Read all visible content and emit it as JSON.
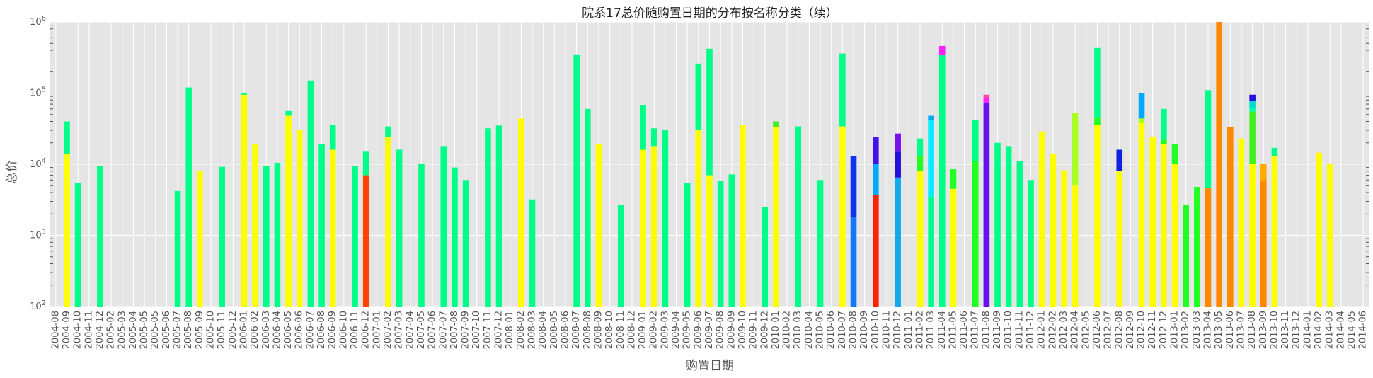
{
  "chart_data": {
    "type": "bar",
    "stacked": true,
    "title": "院系17总价随购置日期的分布按名称分类（续）",
    "xlabel": "购置日期",
    "ylabel": "总价",
    "yscale": "log",
    "ylim": [
      100,
      1000000
    ],
    "y_ticks": [
      {
        "value": 100,
        "base": "10",
        "exp": "2"
      },
      {
        "value": 1000,
        "base": "10",
        "exp": "3"
      },
      {
        "value": 10000,
        "base": "10",
        "exp": "4"
      },
      {
        "value": 100000,
        "base": "10",
        "exp": "5"
      },
      {
        "value": 1000000,
        "base": "10",
        "exp": "6"
      }
    ],
    "grid": true,
    "background": "#e5e5e5",
    "categories": [
      "2004-08",
      "2004-09",
      "2004-10",
      "2004-11",
      "2004-12",
      "2005-02",
      "2005-03",
      "2005-04",
      "2005-05",
      "2005-05",
      "2005-06",
      "2005-07",
      "2005-08",
      "2005-09",
      "2005-10",
      "2005-11",
      "2005-12",
      "2006-01",
      "2006-02",
      "2006-03",
      "2006-04",
      "2006-05",
      "2006-06",
      "2006-07",
      "2006-08",
      "2006-09",
      "2006-10",
      "2006-11",
      "2006-12",
      "2007-01",
      "2007-02",
      "2007-03",
      "2007-04",
      "2007-05",
      "2007-06",
      "2007-07",
      "2007-08",
      "2007-09",
      "2007-10",
      "2007-11",
      "2007-12",
      "2008-01",
      "2008-02",
      "2008-03",
      "2008-04",
      "2008-05",
      "2008-06",
      "2008-07",
      "2008-08",
      "2008-09",
      "2008-10",
      "2008-11",
      "2008-12",
      "2009-01",
      "2009-02",
      "2009-03",
      "2009-04",
      "2009-05",
      "2009-06",
      "2009-07",
      "2009-08",
      "2009-09",
      "2009-10",
      "2009-11",
      "2009-12",
      "2010-01",
      "2010-02",
      "2010-03",
      "2010-04",
      "2010-05",
      "2010-06",
      "2010-07",
      "2010-08",
      "2010-09",
      "2010-10",
      "2010-11",
      "2010-12",
      "2011-01",
      "2011-02",
      "2011-03",
      "2011-04",
      "2011-05",
      "2011-06",
      "2011-07",
      "2011-08",
      "2011-09",
      "2011-10",
      "2011-11",
      "2011-12",
      "2012-01",
      "2012-02",
      "2012-03",
      "2012-04",
      "2012-05",
      "2012-06",
      "2012-07",
      "2012-08",
      "2012-09",
      "2012-10",
      "2012-11",
      "2012-12",
      "2013-01",
      "2013-02",
      "2013-03",
      "2013-04",
      "2013-05",
      "2013-06",
      "2013-07",
      "2013-08",
      "2013-09",
      "2013-10",
      "2013-11",
      "2013-12",
      "2014-01",
      "2014-02",
      "2014-03",
      "2014-04",
      "2014-05",
      "2014-06"
    ],
    "bars": [
      {
        "i": 1,
        "segs": [
          [
            "#ffff00",
            14000
          ],
          [
            "#00ff88",
            40000
          ]
        ]
      },
      {
        "i": 2,
        "segs": [
          [
            "#00ff88",
            5500
          ]
        ]
      },
      {
        "i": 4,
        "segs": [
          [
            "#00ff88",
            9500
          ]
        ]
      },
      {
        "i": 11,
        "segs": [
          [
            "#00ff88",
            4200
          ]
        ]
      },
      {
        "i": 12,
        "segs": [
          [
            "#00ff88",
            120000
          ]
        ]
      },
      {
        "i": 13,
        "segs": [
          [
            "#ffff00",
            8000
          ]
        ]
      },
      {
        "i": 15,
        "segs": [
          [
            "#00ff88",
            9200
          ]
        ]
      },
      {
        "i": 17,
        "segs": [
          [
            "#ffff00",
            95000
          ],
          [
            "#00ff88",
            100000
          ]
        ]
      },
      {
        "i": 18,
        "segs": [
          [
            "#ffff00",
            19000
          ]
        ]
      },
      {
        "i": 19,
        "segs": [
          [
            "#00ff88",
            9500
          ]
        ]
      },
      {
        "i": 20,
        "segs": [
          [
            "#00ff88",
            10500
          ]
        ]
      },
      {
        "i": 21,
        "segs": [
          [
            "#ffff00",
            48000
          ],
          [
            "#00ff88",
            56000
          ]
        ]
      },
      {
        "i": 22,
        "segs": [
          [
            "#ffff00",
            30000
          ]
        ]
      },
      {
        "i": 23,
        "segs": [
          [
            "#00ff88",
            150000
          ]
        ]
      },
      {
        "i": 24,
        "segs": [
          [
            "#00ff88",
            19000
          ]
        ]
      },
      {
        "i": 25,
        "segs": [
          [
            "#ffff00",
            16000
          ],
          [
            "#00ff88",
            36000
          ]
        ]
      },
      {
        "i": 27,
        "segs": [
          [
            "#00ff88",
            9500
          ]
        ]
      },
      {
        "i": 28,
        "segs": [
          [
            "#ff4400",
            7000
          ],
          [
            "#00ff88",
            15000
          ]
        ]
      },
      {
        "i": 30,
        "segs": [
          [
            "#ffff00",
            24000
          ],
          [
            "#00ff88",
            34000
          ]
        ]
      },
      {
        "i": 31,
        "segs": [
          [
            "#00ff88",
            16000
          ]
        ]
      },
      {
        "i": 33,
        "segs": [
          [
            "#00ff88",
            10000
          ]
        ]
      },
      {
        "i": 35,
        "segs": [
          [
            "#00ff88",
            18000
          ]
        ]
      },
      {
        "i": 36,
        "segs": [
          [
            "#00ff88",
            9000
          ]
        ]
      },
      {
        "i": 37,
        "segs": [
          [
            "#00ff88",
            6000
          ]
        ]
      },
      {
        "i": 39,
        "segs": [
          [
            "#00ff88",
            32000
          ]
        ]
      },
      {
        "i": 40,
        "segs": [
          [
            "#00ff88",
            35000
          ]
        ]
      },
      {
        "i": 42,
        "segs": [
          [
            "#ffff00",
            44000
          ]
        ]
      },
      {
        "i": 43,
        "segs": [
          [
            "#00ff88",
            3200
          ]
        ]
      },
      {
        "i": 47,
        "segs": [
          [
            "#00ff88",
            350000
          ]
        ]
      },
      {
        "i": 48,
        "segs": [
          [
            "#00ff88",
            60000
          ]
        ]
      },
      {
        "i": 49,
        "segs": [
          [
            "#ffff00",
            19000
          ]
        ]
      },
      {
        "i": 51,
        "segs": [
          [
            "#00ff88",
            2700
          ]
        ]
      },
      {
        "i": 53,
        "segs": [
          [
            "#ffff00",
            16000
          ],
          [
            "#00ff88",
            68000
          ]
        ]
      },
      {
        "i": 54,
        "segs": [
          [
            "#ffff00",
            18000
          ],
          [
            "#00ff88",
            32000
          ]
        ]
      },
      {
        "i": 55,
        "segs": [
          [
            "#00ff88",
            30000
          ]
        ]
      },
      {
        "i": 57,
        "segs": [
          [
            "#00ff88",
            5500
          ]
        ]
      },
      {
        "i": 58,
        "segs": [
          [
            "#ffff00",
            30000
          ],
          [
            "#00ff88",
            260000
          ]
        ]
      },
      {
        "i": 59,
        "segs": [
          [
            "#ffff00",
            7000
          ],
          [
            "#00ff88",
            420000
          ]
        ]
      },
      {
        "i": 60,
        "segs": [
          [
            "#00ff88",
            5800
          ]
        ]
      },
      {
        "i": 61,
        "segs": [
          [
            "#00ff88",
            7200
          ]
        ]
      },
      {
        "i": 62,
        "segs": [
          [
            "#ffff00",
            36000
          ]
        ]
      },
      {
        "i": 64,
        "segs": [
          [
            "#00ff88",
            2500
          ]
        ]
      },
      {
        "i": 65,
        "segs": [
          [
            "#ffff00",
            33000
          ],
          [
            "#44ee22",
            40000
          ]
        ]
      },
      {
        "i": 67,
        "segs": [
          [
            "#00ff88",
            34000
          ]
        ]
      },
      {
        "i": 69,
        "segs": [
          [
            "#00ff88",
            6000
          ]
        ]
      },
      {
        "i": 71,
        "segs": [
          [
            "#ffff00",
            34000
          ],
          [
            "#00ff88",
            360000
          ]
        ]
      },
      {
        "i": 72,
        "segs": [
          [
            "#1177ff",
            1800
          ],
          [
            "#1133ee",
            13000
          ]
        ]
      },
      {
        "i": 74,
        "segs": [
          [
            "#ff2200",
            3700
          ],
          [
            "#00aaff",
            10000
          ],
          [
            "#4411ee",
            24000
          ]
        ]
      },
      {
        "i": 76,
        "segs": [
          [
            "#11aaee",
            6500
          ],
          [
            "#2211dd",
            15000
          ],
          [
            "#7711ee",
            27000
          ]
        ]
      },
      {
        "i": 78,
        "segs": [
          [
            "#ffff00",
            8000
          ],
          [
            "#22ff22",
            13000
          ],
          [
            "#00ff88",
            23000
          ]
        ]
      },
      {
        "i": 79,
        "segs": [
          [
            "#00ff88",
            3500
          ],
          [
            "#00eeff",
            42000
          ],
          [
            "#00aaee",
            48000
          ]
        ]
      },
      {
        "i": 80,
        "segs": [
          [
            "#00ff88",
            340000
          ],
          [
            "#ff22ff",
            460000
          ]
        ]
      },
      {
        "i": 81,
        "segs": [
          [
            "#ffff00",
            4500
          ],
          [
            "#22ff22",
            8500
          ]
        ]
      },
      {
        "i": 83,
        "segs": [
          [
            "#22ff22",
            11000
          ],
          [
            "#00ff88",
            42000
          ]
        ]
      },
      {
        "i": 84,
        "segs": [
          [
            "#6611ee",
            72000
          ],
          [
            "#ff22ff",
            85000
          ],
          [
            "#ff44aa",
            95000
          ]
        ]
      },
      {
        "i": 85,
        "segs": [
          [
            "#00ff88",
            20000
          ]
        ]
      },
      {
        "i": 86,
        "segs": [
          [
            "#00ff88",
            18000
          ]
        ]
      },
      {
        "i": 87,
        "segs": [
          [
            "#00ff88",
            11000
          ]
        ]
      },
      {
        "i": 88,
        "segs": [
          [
            "#00ff88",
            6000
          ]
        ]
      },
      {
        "i": 89,
        "segs": [
          [
            "#ffff00",
            29000
          ]
        ]
      },
      {
        "i": 90,
        "segs": [
          [
            "#ffff00",
            14000
          ]
        ]
      },
      {
        "i": 91,
        "segs": [
          [
            "#ffff00",
            8200
          ]
        ]
      },
      {
        "i": 92,
        "segs": [
          [
            "#ffff00",
            5000
          ],
          [
            "#aaff22",
            52000
          ]
        ]
      },
      {
        "i": 94,
        "segs": [
          [
            "#ffff00",
            36000
          ],
          [
            "#22ff22",
            46000
          ],
          [
            "#00ff88",
            430000
          ]
        ]
      },
      {
        "i": 96,
        "segs": [
          [
            "#ffff00",
            8000
          ],
          [
            "#1122dd",
            16000
          ]
        ]
      },
      {
        "i": 98,
        "segs": [
          [
            "#ffff00",
            38000
          ],
          [
            "#aaff22",
            44000
          ],
          [
            "#00aaff",
            100000
          ]
        ]
      },
      {
        "i": 99,
        "segs": [
          [
            "#ffff00",
            24000
          ]
        ]
      },
      {
        "i": 100,
        "segs": [
          [
            "#ffff00",
            19000
          ],
          [
            "#22ff22",
            22000
          ],
          [
            "#00ff88",
            60000
          ]
        ]
      },
      {
        "i": 101,
        "segs": [
          [
            "#ffff00",
            10000
          ],
          [
            "#22ff22",
            19000
          ]
        ]
      },
      {
        "i": 102,
        "segs": [
          [
            "#22ff22",
            2700
          ]
        ]
      },
      {
        "i": 103,
        "segs": [
          [
            "#22ff22",
            4800
          ]
        ]
      },
      {
        "i": 104,
        "segs": [
          [
            "#ff8800",
            4700
          ],
          [
            "#00ff88",
            110000
          ]
        ]
      },
      {
        "i": 105,
        "segs": [
          [
            "#ff8800",
            1000000
          ]
        ]
      },
      {
        "i": 106,
        "segs": [
          [
            "#ff8800",
            33000
          ]
        ]
      },
      {
        "i": 107,
        "segs": [
          [
            "#ffff00",
            23000
          ]
        ]
      },
      {
        "i": 108,
        "segs": [
          [
            "#ffff00",
            10000
          ],
          [
            "#44ee22",
            55000
          ],
          [
            "#00ffaa",
            62000
          ],
          [
            "#00ddcc",
            78000
          ],
          [
            "#2211dd",
            95000
          ]
        ]
      },
      {
        "i": 109,
        "segs": [
          [
            "#ff8800",
            6000
          ],
          [
            "#ffaa00",
            10000
          ]
        ]
      },
      {
        "i": 110,
        "segs": [
          [
            "#ffff00",
            13000
          ],
          [
            "#00ff88",
            17000
          ]
        ]
      },
      {
        "i": 114,
        "segs": [
          [
            "#ffff00",
            14500
          ]
        ]
      },
      {
        "i": 115,
        "segs": [
          [
            "#ffff00",
            10000
          ]
        ]
      }
    ]
  }
}
